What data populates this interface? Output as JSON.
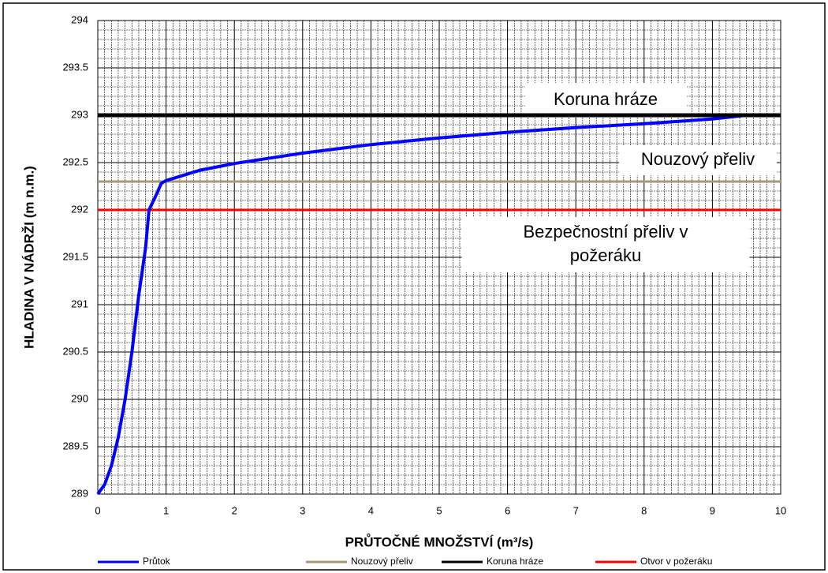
{
  "chart_data": {
    "type": "line",
    "xlabel": "PRŮTOČNÉ MNOŽSTVÍ (m³/s)",
    "ylabel": "HLADINA V NÁDRŽI (m n.m.)",
    "xlim": [
      0,
      10
    ],
    "xticks": [
      0,
      1,
      2,
      3,
      4,
      5,
      6,
      7,
      8,
      9,
      10
    ],
    "ylim": [
      289,
      294
    ],
    "yticks": [
      289,
      289.5,
      290,
      290.5,
      291,
      291.5,
      292,
      292.5,
      293,
      293.5,
      294
    ],
    "grid": true,
    "minor_grid": true,
    "legend": "bottom",
    "annotations": [
      [
        "Koruna hráze"
      ],
      [
        "Nouzový přeliv"
      ],
      [
        "Bezpečnostní přeliv v",
        "požeráku"
      ]
    ],
    "series": [
      {
        "name": "Průtok",
        "color": "#0000ff",
        "x": [
          0,
          0.1,
          0.2,
          0.3,
          0.4,
          0.5,
          0.6,
          0.7,
          0.75,
          0.85,
          0.93,
          1,
          1.5,
          2,
          3,
          4,
          5,
          6,
          7,
          8,
          9,
          9.5
        ],
        "values": [
          289,
          289.1,
          289.3,
          289.6,
          290.0,
          290.5,
          291.1,
          291.6,
          292,
          292.15,
          292.28,
          292.31,
          292.42,
          292.49,
          292.6,
          292.69,
          292.76,
          292.82,
          292.87,
          292.91,
          292.96,
          293
        ]
      },
      {
        "name": "Nouzový přeliv",
        "color": "#a89878",
        "x": [
          0,
          10
        ],
        "values": [
          292.3,
          292.3
        ]
      },
      {
        "name": "Koruna hráze",
        "color": "#000000",
        "x": [
          0,
          10
        ],
        "values": [
          293,
          293
        ]
      },
      {
        "name": "Otvor v požeráku",
        "color": "#ff0000",
        "x": [
          0,
          10
        ],
        "values": [
          292,
          292
        ]
      }
    ]
  }
}
